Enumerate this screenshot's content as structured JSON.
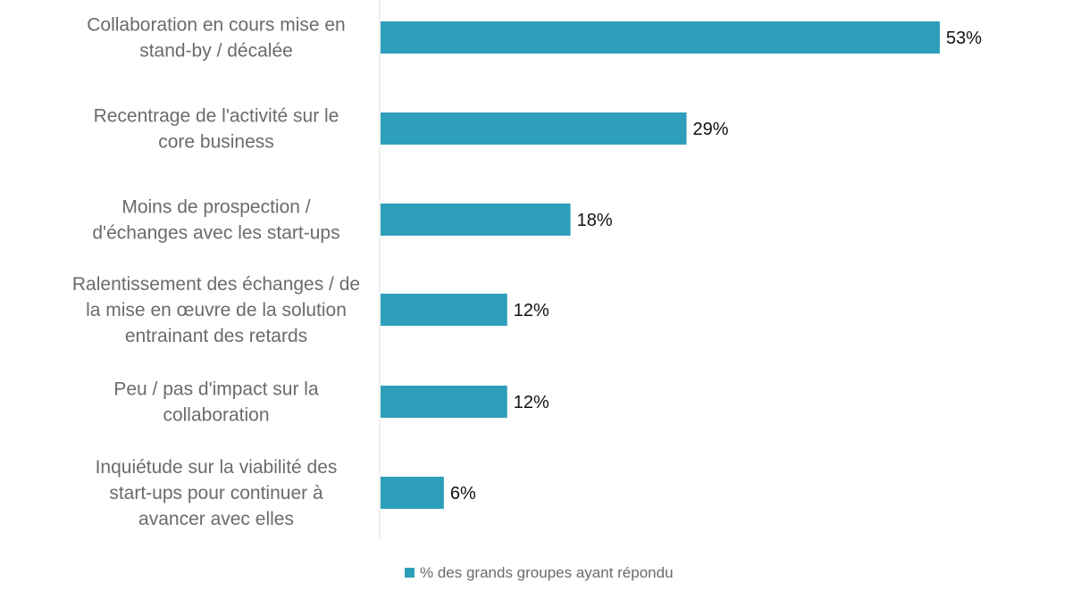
{
  "chart_data": {
    "type": "bar",
    "orientation": "horizontal",
    "categories": [
      [
        "Collaboration en cours mise en",
        "stand-by / décalée"
      ],
      [
        "Recentrage de l'activité sur le",
        "core business"
      ],
      [
        "Moins de prospection /",
        "d'échanges avec les start-ups"
      ],
      [
        "Ralentissement des échanges / de",
        "la mise en œuvre de la solution",
        "entrainant des retards"
      ],
      [
        "Peu / pas d'impact sur la",
        "collaboration"
      ],
      [
        "Inquiétude sur la viabilité des",
        "start-ups pour continuer à",
        "avancer avec elles"
      ]
    ],
    "series": [
      {
        "name": "% des grands groupes ayant répondu",
        "values": [
          53,
          29,
          18,
          12,
          12,
          6
        ],
        "value_labels": [
          "53%",
          "29%",
          "18%",
          "12%",
          "12%",
          "6%"
        ],
        "color": "#2e9fba"
      }
    ],
    "title": "",
    "xlabel": "",
    "ylabel": "",
    "xlim": [
      0,
      60
    ],
    "grid": false,
    "legend_position": "bottom"
  }
}
